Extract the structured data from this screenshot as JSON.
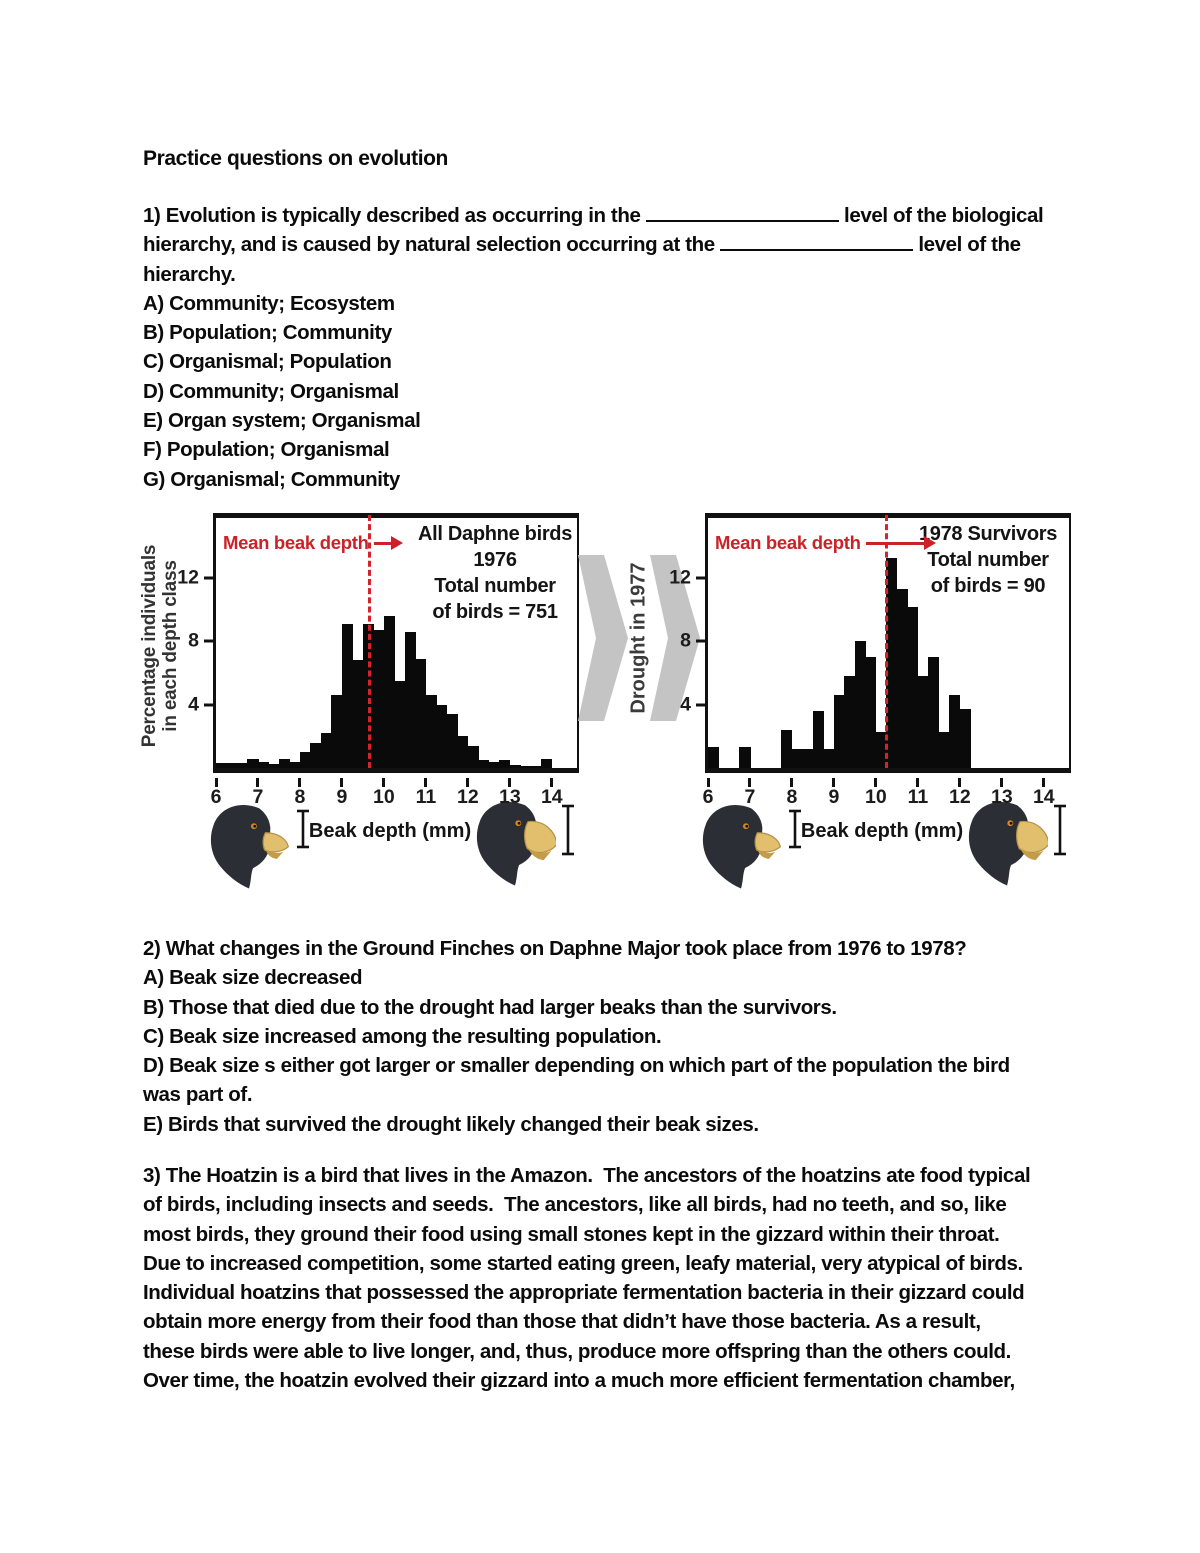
{
  "page": {
    "title": "Practice questions on evolution"
  },
  "q1": {
    "line1a": "1) Evolution is typically described as occurring in the ",
    "line1b": " level of the biological",
    "line2a": "hierarchy, and is caused by natural selection occurring at the ",
    "line2b": " level of the",
    "line3": "hierarchy.",
    "options": [
      "A) Community; Ecosystem",
      "B) Population; Community",
      "C) Organismal; Population",
      "D) Community; Organismal",
      "E) Organ system; Organismal",
      "F) Population; Organismal",
      "G) Organismal; Community"
    ]
  },
  "figure": {
    "ylabel_line1": "Percentage individuals",
    "ylabel_line2": "in each depth class",
    "drought_label": "Drought in 1977",
    "mean_label": "Mean beak depth",
    "left_title_line1": "All Daphne birds",
    "left_title_line2": "1976",
    "left_title_line3": "Total number",
    "left_title_line4": "of birds = 751",
    "right_title_line1": "1978 Survivors",
    "right_title_line2": "Total number",
    "right_title_line3": "of birds = 90",
    "xlabel": "Beak depth (mm)",
    "colors": {
      "annotation_red": "#cc2127",
      "mean_line_red": "#d6232b",
      "arrow_gray": "#c4c4c4",
      "bar_black": "#0a0a0a",
      "beak_gold": "#e2bf6c"
    }
  },
  "chart_data": [
    {
      "type": "bar",
      "title": "All Daphne birds 1976",
      "subtitle": "Total number of birds = 751",
      "total_birds": 751,
      "xlabel": "Beak depth (mm)",
      "ylabel": "Percentage individuals in each depth class",
      "xlim": [
        6,
        14.6
      ],
      "ylim": [
        0,
        15.8
      ],
      "xticks": [
        6,
        7,
        8,
        9,
        10,
        11,
        12,
        13,
        14
      ],
      "yticks": [
        4,
        8,
        12
      ],
      "bin_width": 0.25,
      "bins": [
        6,
        6.25,
        6.5,
        6.75,
        7,
        7.25,
        7.5,
        7.75,
        8,
        8.25,
        8.5,
        8.75,
        9,
        9.25,
        9.5,
        9.75,
        10,
        10.25,
        10.5,
        10.75,
        11,
        11.25,
        11.5,
        11.75,
        12,
        12.25,
        12.5,
        12.75,
        13,
        13.25,
        13.5,
        13.75
      ],
      "values": [
        0.3,
        0.3,
        0.3,
        0.6,
        0.35,
        0.25,
        0.55,
        0.35,
        1.0,
        1.6,
        2.2,
        4.6,
        9.1,
        6.8,
        9.1,
        8.7,
        9.6,
        5.5,
        8.6,
        6.9,
        4.6,
        4.0,
        3.4,
        2.0,
        1.4,
        0.5,
        0.35,
        0.5,
        0.2,
        0.15,
        0.15,
        0.6
      ],
      "mean_beak_depth": 9.62,
      "annotation": "Mean beak depth",
      "grid": false,
      "legend": "none"
    },
    {
      "type": "bar",
      "title": "1978 Survivors",
      "subtitle": "Total number of birds = 90",
      "total_birds": 90,
      "xlabel": "Beak depth (mm)",
      "ylabel": "Percentage individuals in each depth class",
      "xlim": [
        6,
        14.6
      ],
      "ylim": [
        0,
        15.8
      ],
      "xticks": [
        6,
        7,
        8,
        9,
        10,
        11,
        12,
        13,
        14
      ],
      "yticks": [
        4,
        8,
        12
      ],
      "bin_width": 0.25,
      "bins": [
        6,
        6.25,
        6.5,
        6.75,
        7,
        7.25,
        7.5,
        7.75,
        8,
        8.25,
        8.5,
        8.75,
        9,
        9.25,
        9.5,
        9.75,
        10,
        10.25,
        10.5,
        10.75,
        11,
        11.25,
        11.5,
        11.75,
        12,
        12.25,
        12.5,
        12.75,
        13,
        13.25,
        13.5,
        13.75
      ],
      "values": [
        1.3,
        0,
        0,
        1.3,
        0,
        0,
        0,
        2.4,
        1.2,
        1.2,
        3.6,
        1.2,
        4.6,
        5.8,
        8.0,
        7.0,
        2.3,
        13.3,
        11.3,
        10.2,
        5.8,
        7.0,
        2.3,
        4.6,
        3.7,
        0,
        0,
        0,
        0,
        0,
        0,
        0
      ],
      "mean_beak_depth": 10.22,
      "annotation": "Mean beak depth",
      "grid": false,
      "legend": "none"
    }
  ],
  "q2": {
    "lines": [
      "2) What changes in the Ground Finches on Daphne Major took place from 1976 to 1978?",
      "A) Beak size decreased",
      "B) Those that died due to the drought had larger beaks than the survivors.",
      "C) Beak size increased among the resulting population.",
      "D) Beak size s either got larger or smaller depending on which part of the population the bird",
      "was part of.",
      "E) Birds that survived the drought likely changed their beak sizes."
    ]
  },
  "q3": {
    "lines": [
      "3) The Hoatzin is a bird that lives in the Amazon.  The ancestors of the hoatzins ate food typical",
      "of birds, including insects and seeds.  The ancestors, like all birds, had no teeth, and so, like",
      "most birds, they ground their food using small stones kept in the gizzard within their throat.",
      "Due to increased competition, some started eating green, leafy material, very atypical of birds.",
      "Individual hoatzins that possessed the appropriate fermentation bacteria in their gizzard could",
      "obtain more energy from their food than those that didn’t have those bacteria. As a result,",
      "these birds were able to live longer, and, thus, produce more offspring than the others could.",
      "Over time, the hoatzin evolved their gizzard into a much more efficient fermentation chamber,"
    ]
  }
}
